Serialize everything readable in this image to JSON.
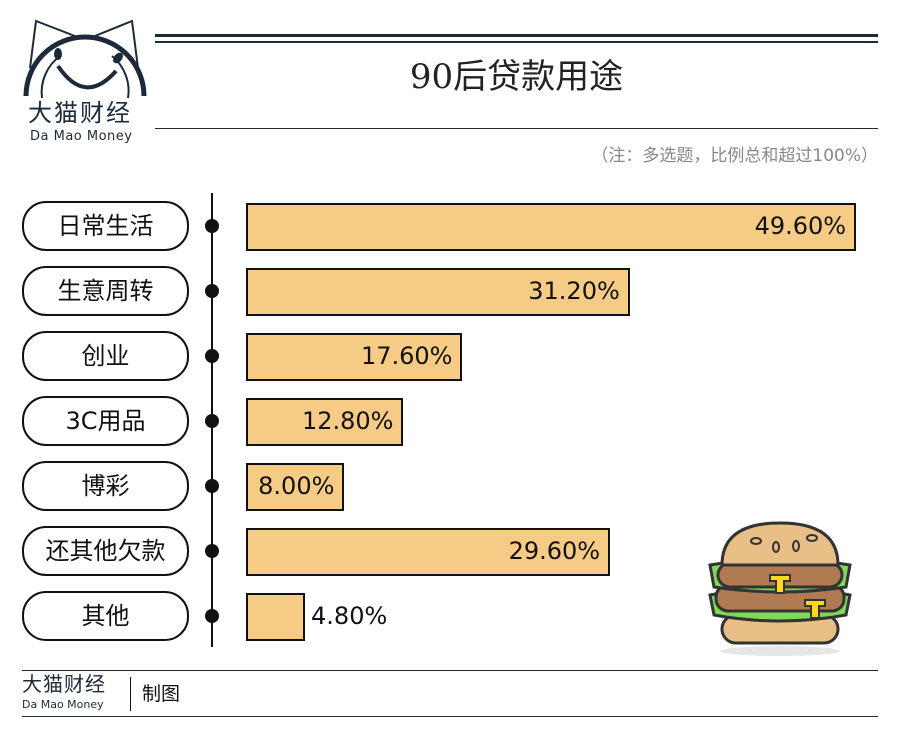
{
  "brand": {
    "name_cn": "大猫财经",
    "name_en": "Da Mao Money"
  },
  "footer": {
    "credit": "制图"
  },
  "chart_data": {
    "type": "bar",
    "orientation": "horizontal",
    "title": "90后贷款用途",
    "subtitle": "（注：多选题，比例总和超过100%）",
    "categories": [
      "日常生活",
      "生意周转",
      "创业",
      "3C用品",
      "博彩",
      "还其他欠款",
      "其他"
    ],
    "values": [
      49.6,
      31.2,
      17.6,
      12.8,
      8.0,
      29.6,
      4.8
    ],
    "labels": [
      "49.60%",
      "31.20%",
      "17.60%",
      "12.80%",
      "8.00%",
      "29.60%",
      "4.80%"
    ],
    "unit": "%",
    "bar_color": "#f6cb86",
    "grid": false
  },
  "decoration": {
    "illustration": "hamburger-icon"
  }
}
